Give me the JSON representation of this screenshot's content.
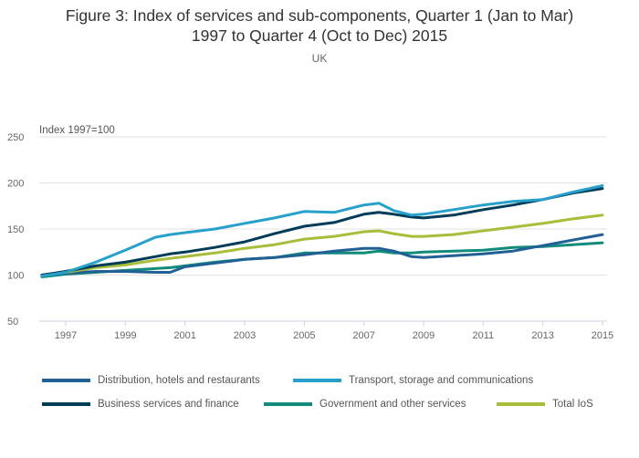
{
  "chart_data": {
    "type": "line",
    "title": "Figure 3: Index of services and sub-components, Quarter 1 (Jan to Mar) 1997 to Quarter 4 (Oct to Dec) 2015",
    "title_lines": [
      "Figure 3: Index of services and sub-components, Quarter 1 (Jan to Mar)",
      "1997 to Quarter 4 (Oct to Dec) 2015"
    ],
    "subtitle": "UK",
    "ylabel": "Index 1997=100",
    "xlabel": "",
    "ylim": [
      50,
      250
    ],
    "yticks": [
      50,
      100,
      150,
      200,
      250
    ],
    "xlim": [
      1996.2,
      2015.05
    ],
    "xticks": [
      "1997",
      "1999",
      "2001",
      "2003",
      "2005",
      "2007",
      "2009",
      "2011",
      "2013",
      "2015"
    ],
    "grid": true,
    "legend_position": "bottom",
    "x": [
      1996.2,
      1997,
      1998,
      1999,
      2000,
      2000.5,
      2001,
      2002,
      2003,
      2004,
      2005,
      2006,
      2007,
      2007.5,
      2008,
      2008.6,
      2009,
      2010,
      2011,
      2012,
      2013,
      2014,
      2015
    ],
    "series": [
      {
        "name": "Distribution, hotels and restaurants",
        "color": "#206095",
        "values": [
          100,
          102,
          104,
          104,
          103,
          103,
          109,
          113,
          117,
          119,
          122,
          126,
          129,
          129,
          126,
          120,
          119,
          121,
          123,
          126,
          132,
          138,
          144
        ]
      },
      {
        "name": "Transport, storage and communications",
        "color": "#27a0cc",
        "values": [
          99,
          103,
          114,
          127,
          141,
          144,
          146,
          150,
          156,
          162,
          169,
          168,
          176,
          178,
          170,
          165,
          166,
          171,
          176,
          180,
          182,
          190,
          197
        ]
      },
      {
        "name": "Business services and finance",
        "color": "#003c57",
        "values": [
          100,
          104,
          110,
          114,
          120,
          123,
          125,
          130,
          136,
          145,
          153,
          157,
          166,
          168,
          166,
          163,
          162,
          165,
          171,
          176,
          182,
          189,
          194
        ]
      },
      {
        "name": "Government and other services",
        "color": "#118c7b",
        "values": [
          98,
          101,
          103,
          105,
          107,
          108,
          110,
          114,
          117,
          119,
          124,
          124,
          124,
          126,
          124,
          124,
          125,
          126,
          127,
          130,
          131,
          133,
          135
        ]
      },
      {
        "name": "Total IoS",
        "color": "#a8bd3a",
        "values": [
          100,
          103,
          108,
          111,
          116,
          118,
          120,
          124,
          129,
          133,
          139,
          142,
          147,
          148,
          145,
          142,
          142,
          144,
          148,
          152,
          156,
          161,
          165
        ]
      }
    ]
  }
}
